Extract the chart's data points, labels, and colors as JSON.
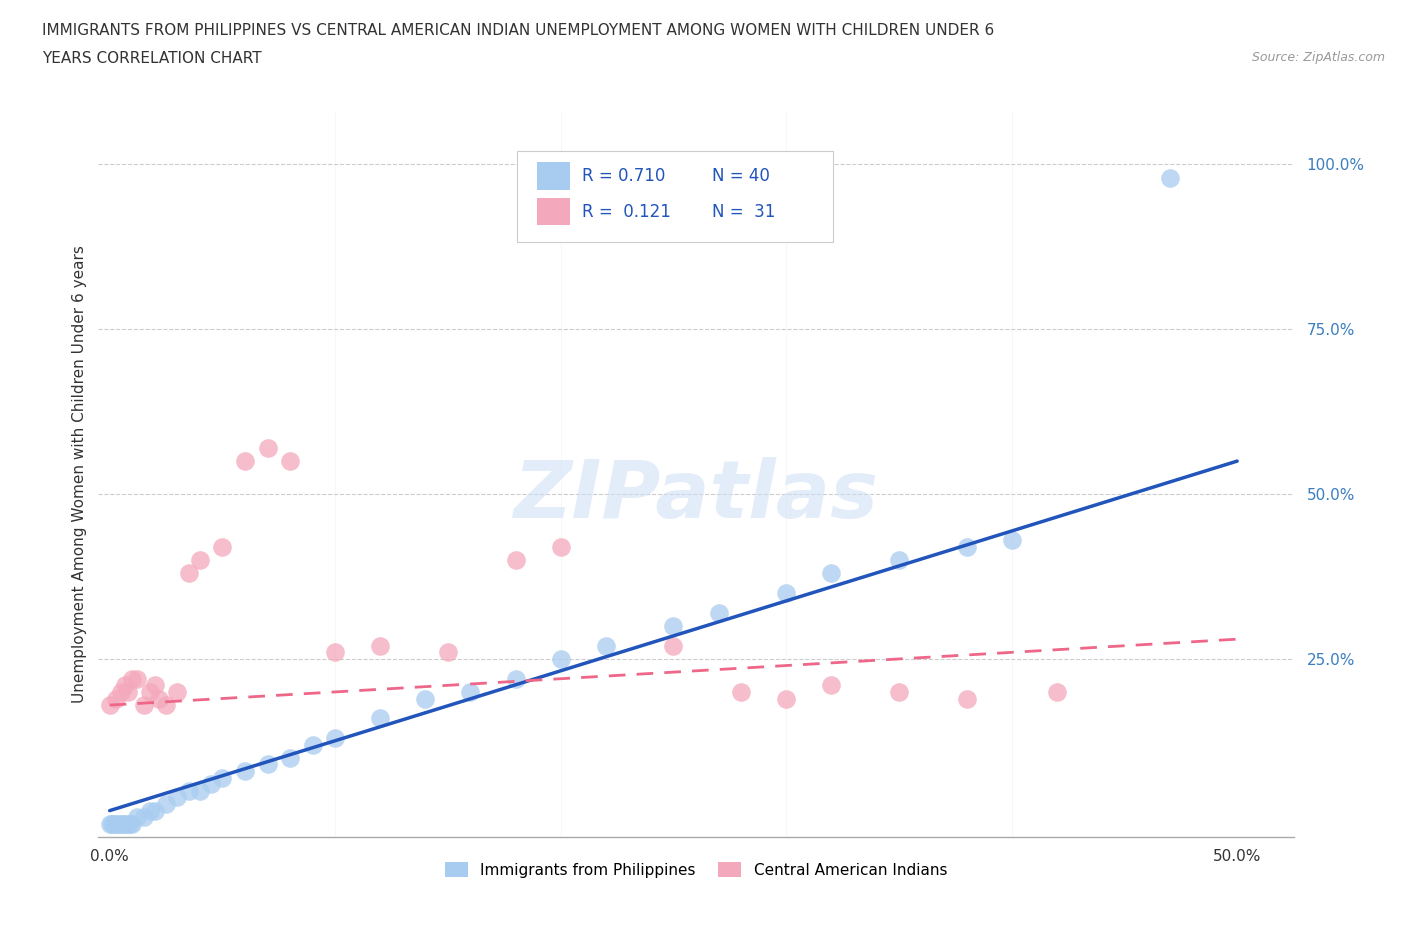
{
  "title_line1": "IMMIGRANTS FROM PHILIPPINES VS CENTRAL AMERICAN INDIAN UNEMPLOYMENT AMONG WOMEN WITH CHILDREN UNDER 6",
  "title_line2": "YEARS CORRELATION CHART",
  "source": "Source: ZipAtlas.com",
  "ylabel_val": "Unemployment Among Women with Children Under 6 years",
  "xlim": [
    -0.005,
    0.525
  ],
  "ylim": [
    -0.02,
    1.08
  ],
  "blue_color": "#A8CCF0",
  "pink_color": "#F4A8BB",
  "line_blue": "#2255BB",
  "line_pink": "#EE6688",
  "R_blue": 0.71,
  "N_blue": 40,
  "R_pink": 0.121,
  "N_pink": 31,
  "legend_label_blue": "Immigrants from Philippines",
  "legend_label_pink": "Central American Indians",
  "watermark": "ZIPatlas",
  "blue_x": [
    0.0,
    0.001,
    0.002,
    0.003,
    0.004,
    0.005,
    0.006,
    0.007,
    0.008,
    0.009,
    0.01,
    0.012,
    0.015,
    0.018,
    0.02,
    0.025,
    0.03,
    0.035,
    0.04,
    0.045,
    0.05,
    0.06,
    0.07,
    0.08,
    0.09,
    0.1,
    0.12,
    0.14,
    0.16,
    0.18,
    0.2,
    0.22,
    0.25,
    0.27,
    0.3,
    0.32,
    0.35,
    0.38,
    0.4,
    0.47
  ],
  "blue_y": [
    0.0,
    0.0,
    0.0,
    0.0,
    0.0,
    0.0,
    0.0,
    0.0,
    0.0,
    0.0,
    0.0,
    0.01,
    0.01,
    0.02,
    0.02,
    0.03,
    0.04,
    0.05,
    0.05,
    0.06,
    0.07,
    0.08,
    0.09,
    0.1,
    0.12,
    0.13,
    0.16,
    0.19,
    0.2,
    0.22,
    0.25,
    0.27,
    0.3,
    0.32,
    0.35,
    0.38,
    0.4,
    0.42,
    0.43,
    0.98
  ],
  "pink_x": [
    0.0,
    0.003,
    0.005,
    0.007,
    0.008,
    0.01,
    0.012,
    0.015,
    0.018,
    0.02,
    0.022,
    0.025,
    0.03,
    0.035,
    0.04,
    0.05,
    0.06,
    0.07,
    0.08,
    0.1,
    0.12,
    0.15,
    0.18,
    0.2,
    0.25,
    0.28,
    0.3,
    0.32,
    0.35,
    0.38,
    0.42
  ],
  "pink_y": [
    0.18,
    0.19,
    0.2,
    0.21,
    0.2,
    0.22,
    0.22,
    0.18,
    0.2,
    0.21,
    0.19,
    0.18,
    0.2,
    0.38,
    0.4,
    0.42,
    0.55,
    0.57,
    0.55,
    0.26,
    0.27,
    0.26,
    0.4,
    0.42,
    0.27,
    0.2,
    0.19,
    0.21,
    0.2,
    0.19,
    0.2
  ],
  "blue_line_x": [
    0.0,
    0.5
  ],
  "blue_line_y": [
    0.02,
    0.55
  ],
  "pink_line_x": [
    0.0,
    0.5
  ],
  "pink_line_y": [
    0.18,
    0.28
  ]
}
